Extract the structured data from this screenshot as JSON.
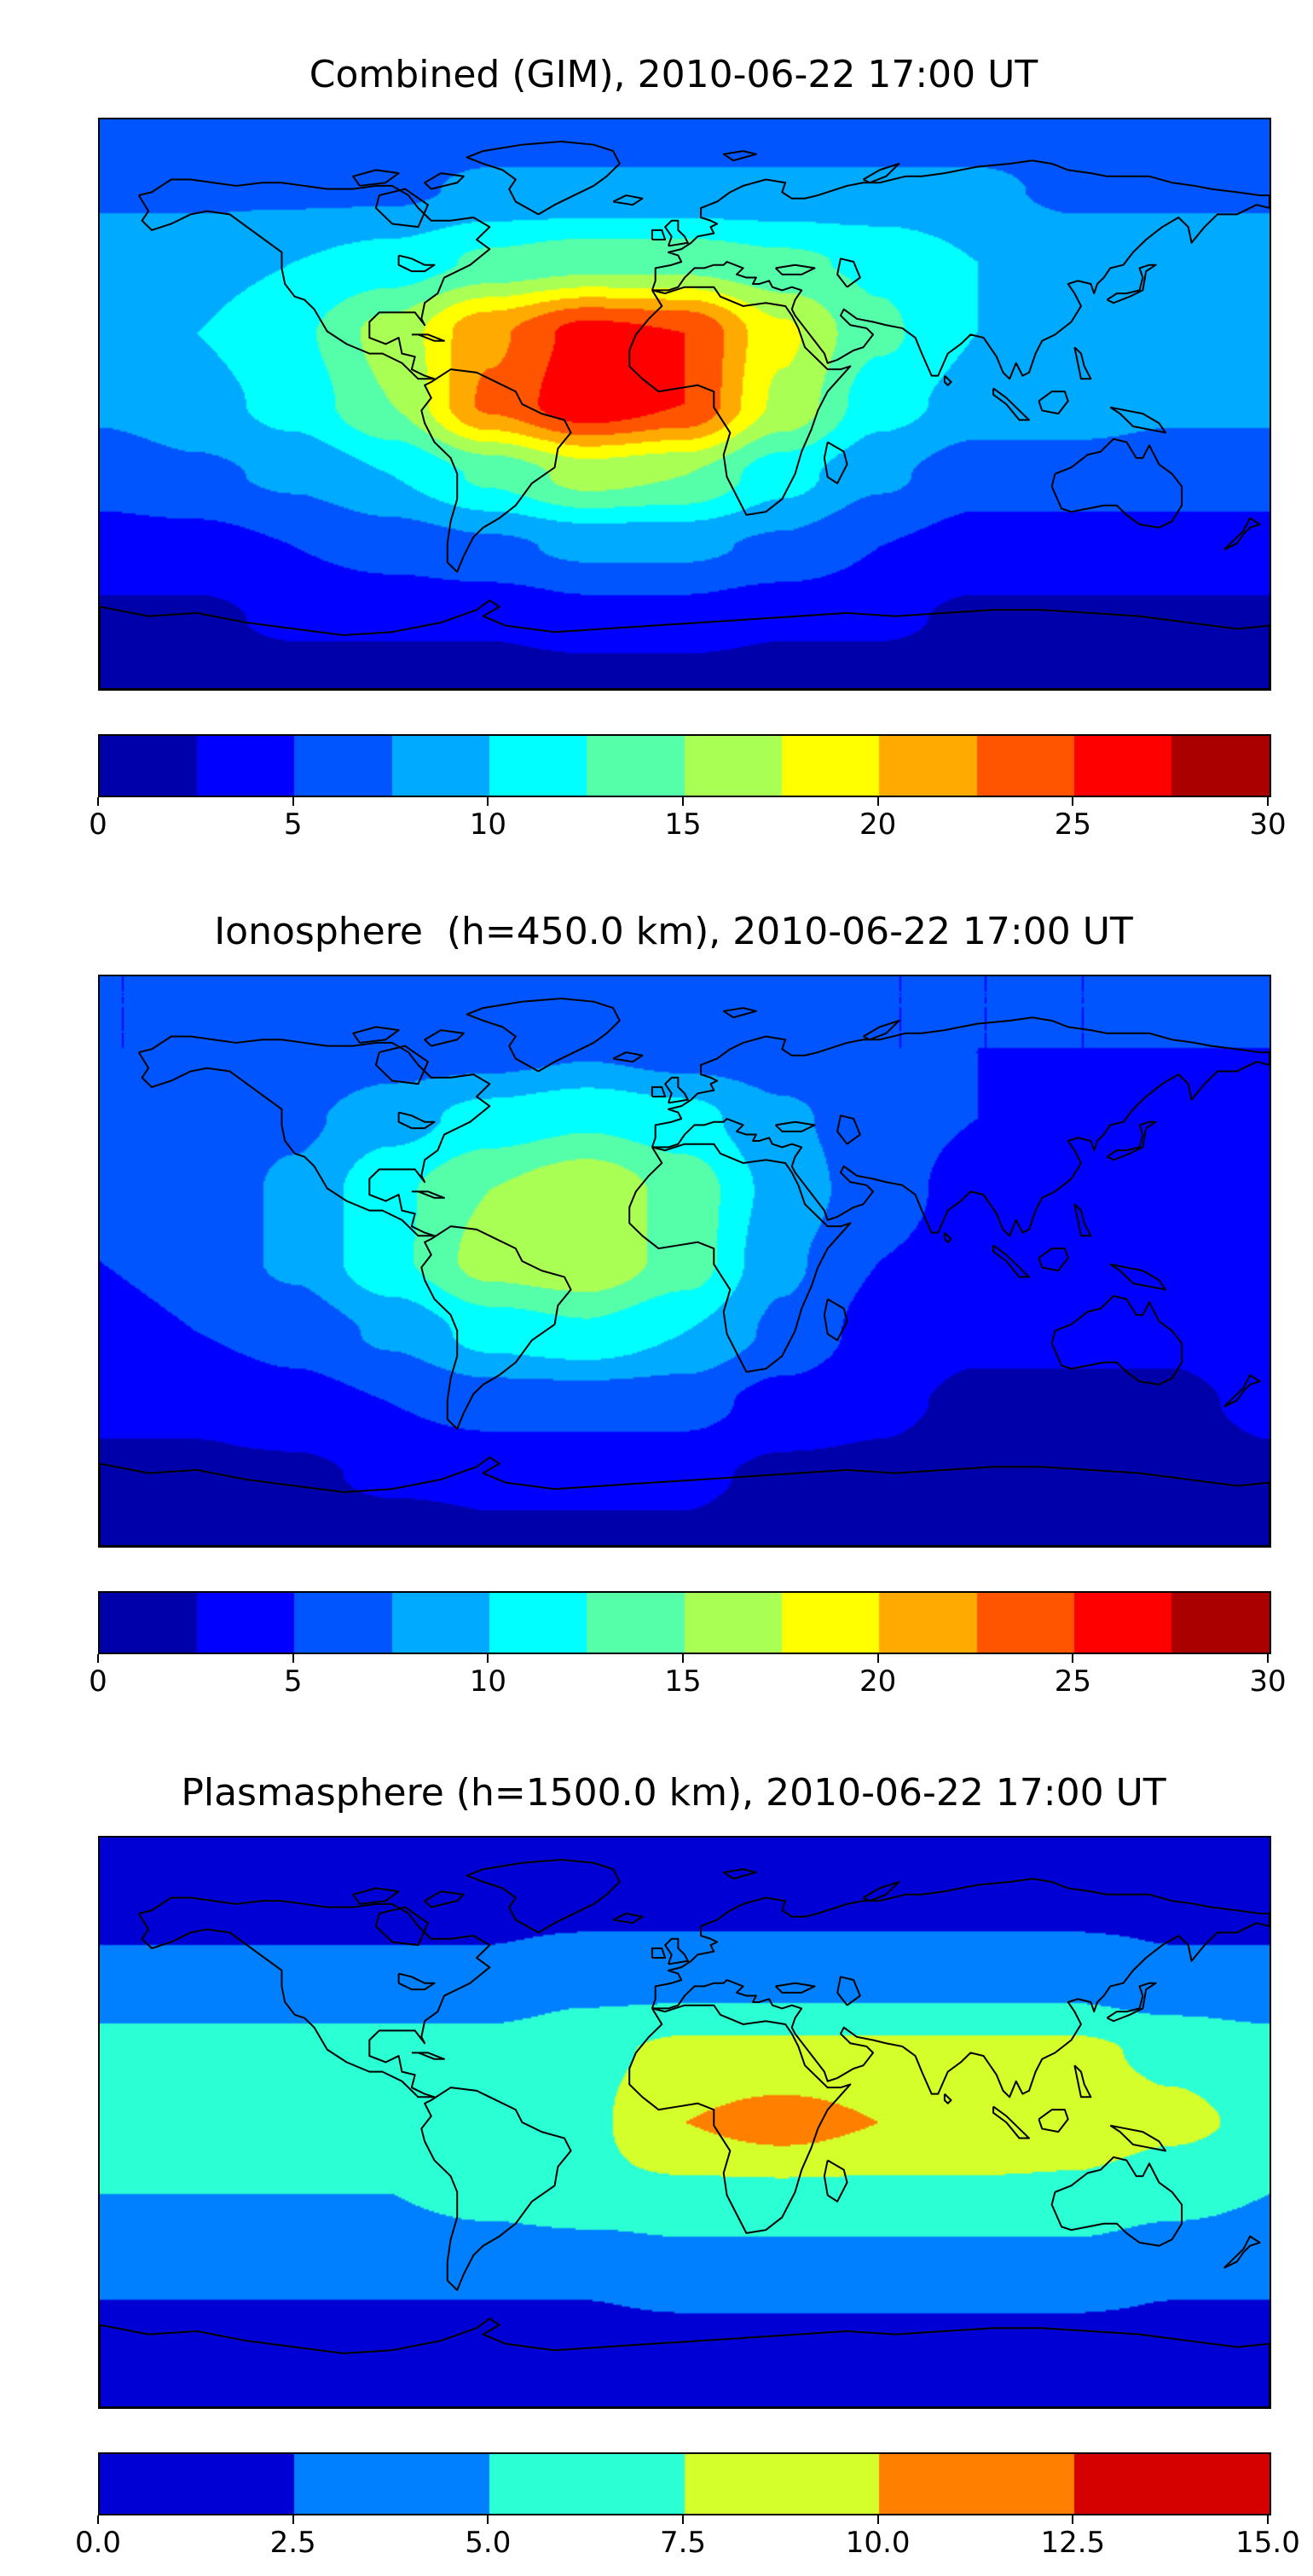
{
  "page": {
    "background": "#ffffff"
  },
  "chart_data": [
    {
      "type": "heatmap",
      "title": "Combined (GIM), 2010-06-22 17:00 UT",
      "projection": "equirectangular",
      "colormap": "jet",
      "vmin": 0,
      "vmax": 30,
      "levels": 12,
      "colorbar_ticks": [
        "0",
        "5",
        "10",
        "15",
        "20",
        "25",
        "30"
      ],
      "lon": [
        -180,
        -150,
        -120,
        -90,
        -60,
        -30,
        0,
        30,
        60,
        90,
        120,
        150,
        180
      ],
      "lat": [
        90,
        67.5,
        45,
        22.5,
        0,
        -22.5,
        -45,
        -67.5,
        -90
      ],
      "values": [
        [
          6,
          6,
          6,
          6,
          6,
          6,
          6,
          6,
          6,
          6,
          6,
          6,
          6
        ],
        [
          7,
          7,
          7,
          7,
          8,
          8,
          8,
          8,
          8,
          8,
          7,
          7,
          7
        ],
        [
          9,
          9,
          10,
          11,
          13,
          14,
          14,
          13,
          12,
          10,
          9,
          9,
          9
        ],
        [
          9,
          10,
          12,
          16,
          22,
          26,
          25,
          18,
          13,
          10,
          9,
          9,
          9
        ],
        [
          8,
          9,
          11,
          15,
          23,
          27,
          25,
          17,
          11,
          9,
          9,
          8,
          8
        ],
        [
          6,
          7,
          8,
          10,
          13,
          16,
          15,
          11,
          8,
          6,
          6,
          6,
          6
        ],
        [
          4,
          4,
          5,
          6,
          7,
          8,
          8,
          7,
          5,
          4,
          4,
          4,
          4
        ],
        [
          2,
          2,
          3,
          3,
          3,
          4,
          4,
          3,
          3,
          2,
          2,
          2,
          2
        ],
        [
          1,
          1,
          1,
          1,
          1,
          1,
          1,
          1,
          1,
          1,
          1,
          1,
          1
        ]
      ]
    },
    {
      "type": "heatmap",
      "title": "Ionosphere  (h=450.0 km), 2010-06-22 17:00 UT",
      "projection": "equirectangular",
      "colormap": "jet",
      "vmin": 0,
      "vmax": 30,
      "levels": 12,
      "colorbar_ticks": [
        "0",
        "5",
        "10",
        "15",
        "20",
        "25",
        "30"
      ],
      "lon": [
        -180,
        -150,
        -120,
        -90,
        -60,
        -30,
        0,
        30,
        60,
        90,
        120,
        150,
        180
      ],
      "lat": [
        90,
        67.5,
        45,
        22.5,
        0,
        -22.5,
        -45,
        -67.5,
        -90
      ],
      "values": [
        [
          5,
          5,
          5,
          5,
          5,
          5,
          5,
          5,
          5,
          5,
          5,
          5,
          5
        ],
        [
          5,
          5,
          5,
          6,
          6,
          7,
          6,
          6,
          5,
          5,
          5,
          5,
          5
        ],
        [
          5,
          6,
          7,
          9,
          11,
          12,
          11,
          8,
          6,
          5,
          4,
          4,
          5
        ],
        [
          5,
          6,
          8,
          12,
          15,
          17,
          14,
          9,
          6,
          4,
          4,
          4,
          5
        ],
        [
          5,
          6,
          8,
          12,
          16,
          17,
          14,
          8,
          5,
          4,
          4,
          4,
          5
        ],
        [
          4,
          5,
          6,
          8,
          11,
          12,
          10,
          7,
          4,
          3,
          3,
          3,
          4
        ],
        [
          3,
          3,
          4,
          5,
          6,
          6,
          6,
          4,
          3,
          2,
          2,
          2,
          3
        ],
        [
          2,
          2,
          2,
          3,
          3,
          3,
          3,
          2,
          2,
          1,
          1,
          1,
          2
        ],
        [
          1,
          1,
          1,
          1,
          2,
          2,
          2,
          1,
          1,
          1,
          1,
          1,
          1
        ]
      ]
    },
    {
      "type": "heatmap",
      "title": "Plasmasphere (h=1500.0 km), 2010-06-22 17:00 UT",
      "projection": "equirectangular",
      "colormap": "jet",
      "vmin": 0,
      "vmax": 15,
      "levels": 6,
      "colorbar_ticks": [
        "0.0",
        "2.5",
        "5.0",
        "7.5",
        "10.0",
        "12.5",
        "15.0"
      ],
      "lon": [
        -180,
        -150,
        -120,
        -90,
        -60,
        -30,
        0,
        30,
        60,
        90,
        120,
        150,
        180
      ],
      "lat": [
        90,
        67.5,
        45,
        22.5,
        0,
        -22.5,
        -45,
        -67.5,
        -90
      ],
      "values": [
        [
          1.5,
          1.5,
          1.5,
          1.5,
          1.5,
          1.5,
          1.5,
          1.5,
          1.5,
          1.5,
          1.5,
          1.5,
          1.5
        ],
        [
          2,
          2,
          2,
          2,
          2,
          2,
          2,
          2,
          2,
          2,
          2,
          2,
          2
        ],
        [
          3,
          3,
          3,
          3,
          3,
          4,
          4,
          4,
          4,
          4,
          4,
          3,
          3
        ],
        [
          6,
          6,
          6,
          6,
          6,
          7,
          8,
          8,
          8,
          8,
          8,
          7,
          6
        ],
        [
          6,
          6,
          6,
          6,
          7,
          7,
          10,
          11,
          10,
          10,
          9,
          8,
          7
        ],
        [
          5,
          5,
          5,
          5,
          6,
          7,
          7,
          7,
          7,
          7,
          7,
          6,
          5
        ],
        [
          3,
          3,
          3,
          3,
          3,
          3,
          4,
          4,
          4,
          4,
          4,
          3,
          3
        ],
        [
          2,
          2,
          2,
          2,
          2,
          2,
          2,
          2,
          2,
          2,
          2,
          2,
          2
        ],
        [
          1,
          1,
          1,
          1,
          1,
          1,
          1,
          1,
          1,
          1,
          1,
          1,
          1
        ]
      ]
    }
  ]
}
